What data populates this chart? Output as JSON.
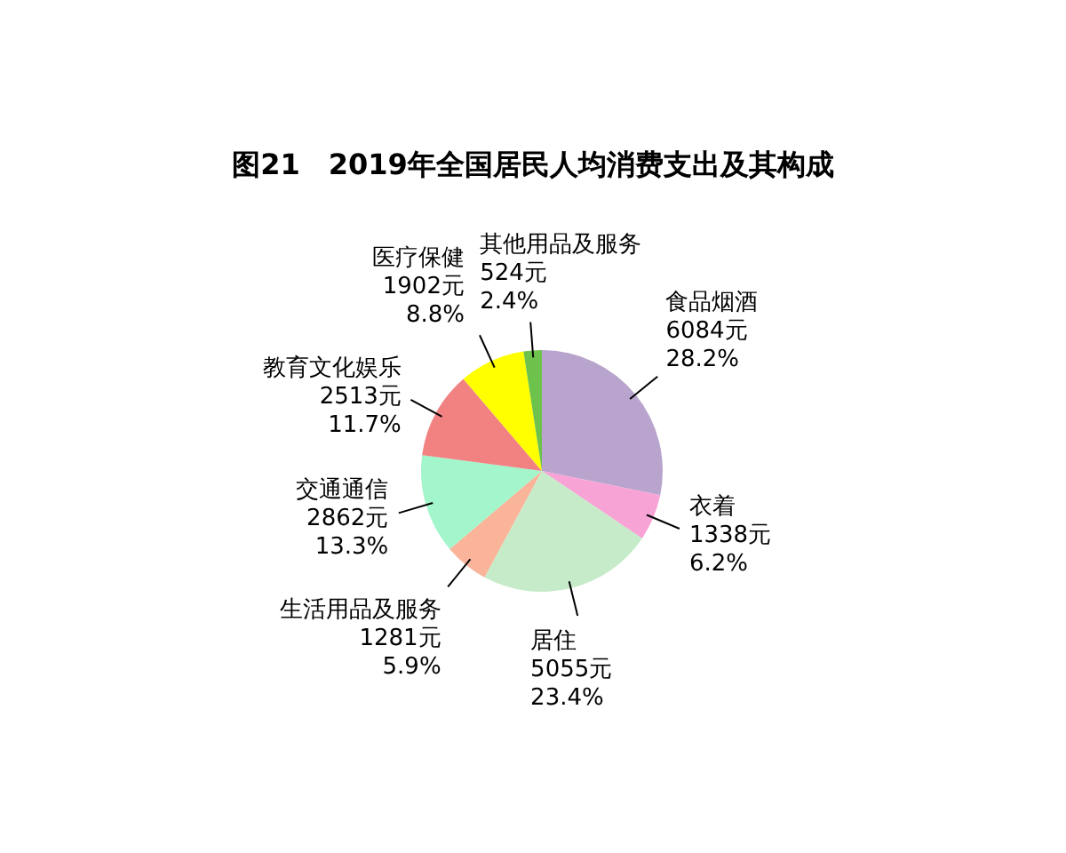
{
  "chart_data": {
    "type": "pie",
    "title": "图21　2019年全国居民人均消费支出及其构成",
    "categories": [
      "食品烟酒",
      "衣着",
      "居住",
      "生活用品及服务",
      "交通通信",
      "教育文化娱乐",
      "医疗保健",
      "其他用品及服务"
    ],
    "values": [
      6084,
      1338,
      5055,
      1281,
      2862,
      2513,
      1902,
      524
    ],
    "value_labels": [
      "6084元\n28.2%",
      "1338元\n6.2%",
      "5055元\n23.4%",
      "1281元\n5.9%",
      "2862元\n13.3%",
      "2513元\n11.7%",
      "1902元\n8.8%",
      "524元\n2.4%"
    ],
    "colors": [
      "#b8a4cc",
      "#f7a3d6",
      "#c6ebc9",
      "#f9b49a",
      "#a3f5cc",
      "#f28282",
      "#ffff00",
      "#6cc24a"
    ]
  }
}
